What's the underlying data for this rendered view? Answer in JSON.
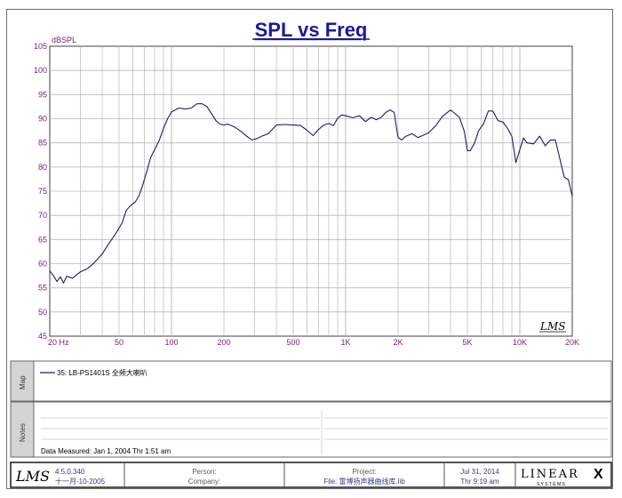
{
  "chart_data": {
    "type": "line",
    "title": "SPL vs Freq",
    "ylabel": "dBSPL",
    "xscale": "log",
    "xlim": [
      20,
      20000
    ],
    "ylim": [
      45,
      105
    ],
    "grid": true,
    "y_ticks": [
      45,
      50,
      55,
      60,
      65,
      70,
      75,
      80,
      85,
      90,
      95,
      100,
      105
    ],
    "x_ticks": [
      {
        "value": 20,
        "label": "20  Hz"
      },
      {
        "value": 50,
        "label": "50"
      },
      {
        "value": 100,
        "label": "100"
      },
      {
        "value": 200,
        "label": "200"
      },
      {
        "value": 500,
        "label": "500"
      },
      {
        "value": 1000,
        "label": "1K"
      },
      {
        "value": 2000,
        "label": "2K"
      },
      {
        "value": 5000,
        "label": "5K"
      },
      {
        "value": 10000,
        "label": "10K"
      },
      {
        "value": 20000,
        "label": "20K"
      }
    ],
    "series": [
      {
        "name": "35: LB-PS1401S 全频大喇叭",
        "color": "#1a1a6e",
        "points": [
          [
            20,
            58.5
          ],
          [
            21,
            57.5
          ],
          [
            22,
            56.3
          ],
          [
            23,
            57.3
          ],
          [
            24,
            56.0
          ],
          [
            25,
            57.4
          ],
          [
            27,
            57.0
          ],
          [
            30,
            58.3
          ],
          [
            33,
            59.0
          ],
          [
            36,
            60.2
          ],
          [
            40,
            62.0
          ],
          [
            44,
            64.3
          ],
          [
            48,
            66.3
          ],
          [
            52,
            68.4
          ],
          [
            55,
            71.0
          ],
          [
            58,
            72.0
          ],
          [
            62,
            72.8
          ],
          [
            65,
            74.0
          ],
          [
            68,
            76.0
          ],
          [
            72,
            79.0
          ],
          [
            76,
            82.0
          ],
          [
            80,
            83.6
          ],
          [
            85,
            85.5
          ],
          [
            90,
            88.0
          ],
          [
            95,
            90.0
          ],
          [
            100,
            91.4
          ],
          [
            105,
            91.8
          ],
          [
            110,
            92.2
          ],
          [
            120,
            92.0
          ],
          [
            130,
            92.2
          ],
          [
            140,
            93.1
          ],
          [
            150,
            93.1
          ],
          [
            160,
            92.5
          ],
          [
            170,
            91.0
          ],
          [
            180,
            89.6
          ],
          [
            190,
            88.9
          ],
          [
            200,
            88.7
          ],
          [
            210,
            88.9
          ],
          [
            230,
            88.3
          ],
          [
            250,
            87.4
          ],
          [
            270,
            86.4
          ],
          [
            290,
            85.6
          ],
          [
            310,
            85.9
          ],
          [
            330,
            86.4
          ],
          [
            360,
            86.9
          ],
          [
            400,
            88.7
          ],
          [
            450,
            88.8
          ],
          [
            500,
            88.7
          ],
          [
            550,
            88.6
          ],
          [
            600,
            87.6
          ],
          [
            650,
            86.5
          ],
          [
            700,
            87.8
          ],
          [
            750,
            88.7
          ],
          [
            800,
            89.0
          ],
          [
            850,
            88.6
          ],
          [
            900,
            90.1
          ],
          [
            950,
            90.8
          ],
          [
            1000,
            90.6
          ],
          [
            1100,
            90.2
          ],
          [
            1200,
            90.6
          ],
          [
            1300,
            89.4
          ],
          [
            1400,
            90.3
          ],
          [
            1500,
            89.8
          ],
          [
            1600,
            90.3
          ],
          [
            1700,
            91.3
          ],
          [
            1800,
            91.8
          ],
          [
            1900,
            91.3
          ],
          [
            2000,
            86.1
          ],
          [
            2100,
            85.6
          ],
          [
            2200,
            86.3
          ],
          [
            2400,
            86.9
          ],
          [
            2600,
            86.1
          ],
          [
            2800,
            86.6
          ],
          [
            3000,
            87.1
          ],
          [
            3300,
            88.6
          ],
          [
            3600,
            90.5
          ],
          [
            4000,
            91.8
          ],
          [
            4200,
            91.2
          ],
          [
            4500,
            90.3
          ],
          [
            4800,
            87.4
          ],
          [
            5000,
            83.4
          ],
          [
            5200,
            83.4
          ],
          [
            5500,
            85.0
          ],
          [
            5800,
            87.5
          ],
          [
            6200,
            89.0
          ],
          [
            6600,
            91.6
          ],
          [
            7000,
            91.6
          ],
          [
            7500,
            89.6
          ],
          [
            8000,
            89.3
          ],
          [
            8500,
            88.0
          ],
          [
            9000,
            86.4
          ],
          [
            9500,
            80.9
          ],
          [
            10000,
            83.6
          ],
          [
            10500,
            86.0
          ],
          [
            11000,
            85.0
          ],
          [
            12000,
            84.8
          ],
          [
            13000,
            86.4
          ],
          [
            14000,
            84.4
          ],
          [
            15000,
            85.6
          ],
          [
            16000,
            85.6
          ],
          [
            17000,
            81.6
          ],
          [
            18000,
            77.9
          ],
          [
            19000,
            77.4
          ],
          [
            20000,
            74.0
          ]
        ]
      }
    ]
  },
  "panels": {
    "map_label": "Map",
    "notes_label": "Notes",
    "legend_text": "35: LB-PS1401S 全频大喇叭",
    "data_measured": "Data Measured: Jan  1, 2004  Thr  1:51 am"
  },
  "footer": {
    "logo": "LMS",
    "version": "4.5.0.340",
    "build_date": "十一月-10-2005",
    "person_label": "Person:",
    "company_label": "Company:",
    "project_label": "Project:",
    "file_label": "File: 雷博扬声器曲线库.lib",
    "date": "Jul 31, 2014",
    "time": "Thr  9:19 am",
    "brand_main": "LINEAR",
    "brand_x": "X",
    "brand_sub": "S Y S T E M S"
  },
  "watermark": "LMS",
  "colors": {
    "title": "#1a1a9a",
    "axis_label": "#7a1a7a",
    "curve": "#1a1a6e",
    "grid": "#b8b8b8",
    "panel_bg": "#d4d4d4"
  }
}
